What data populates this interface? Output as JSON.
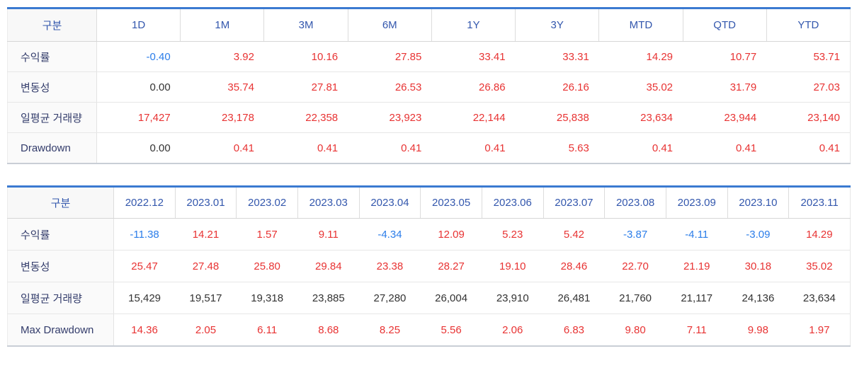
{
  "colors": {
    "top_border": "#3b7ad1",
    "bottom_border": "#c9ced6",
    "header_text": "#3357ad",
    "label_text": "#333c6b",
    "red": "#e83333",
    "blue": "#2b7de9",
    "neutral": "#333333"
  },
  "period_table": {
    "headers": [
      "구분",
      "1D",
      "1M",
      "3M",
      "6M",
      "1Y",
      "3Y",
      "MTD",
      "QTD",
      "YTD"
    ],
    "rows": [
      {
        "label": "수익률",
        "values": [
          "-0.40",
          "3.92",
          "10.16",
          "27.85",
          "33.41",
          "33.31",
          "14.29",
          "10.77",
          "53.71"
        ],
        "colors": [
          "blue",
          "red",
          "red",
          "red",
          "red",
          "red",
          "red",
          "red",
          "red"
        ]
      },
      {
        "label": "변동성",
        "values": [
          "0.00",
          "35.74",
          "27.81",
          "26.53",
          "26.86",
          "26.16",
          "35.02",
          "31.79",
          "27.03"
        ],
        "colors": [
          "neutral",
          "red",
          "red",
          "red",
          "red",
          "red",
          "red",
          "red",
          "red"
        ]
      },
      {
        "label": "일평균 거래량",
        "values": [
          "17,427",
          "23,178",
          "22,358",
          "23,923",
          "22,144",
          "25,838",
          "23,634",
          "23,944",
          "23,140"
        ],
        "colors": [
          "red",
          "red",
          "red",
          "red",
          "red",
          "red",
          "red",
          "red",
          "red"
        ]
      },
      {
        "label": "Drawdown",
        "values": [
          "0.00",
          "0.41",
          "0.41",
          "0.41",
          "0.41",
          "5.63",
          "0.41",
          "0.41",
          "0.41"
        ],
        "colors": [
          "neutral",
          "red",
          "red",
          "red",
          "red",
          "red",
          "red",
          "red",
          "red"
        ]
      }
    ]
  },
  "monthly_table": {
    "headers": [
      "구분",
      "2022.12",
      "2023.01",
      "2023.02",
      "2023.03",
      "2023.04",
      "2023.05",
      "2023.06",
      "2023.07",
      "2023.08",
      "2023.09",
      "2023.10",
      "2023.11"
    ],
    "rows": [
      {
        "label": "수익률",
        "values": [
          "-11.38",
          "14.21",
          "1.57",
          "9.11",
          "-4.34",
          "12.09",
          "5.23",
          "5.42",
          "-3.87",
          "-4.11",
          "-3.09",
          "14.29"
        ],
        "colors": [
          "blue",
          "red",
          "red",
          "red",
          "blue",
          "red",
          "red",
          "red",
          "blue",
          "blue",
          "blue",
          "red"
        ]
      },
      {
        "label": "변동성",
        "values": [
          "25.47",
          "27.48",
          "25.80",
          "29.84",
          "23.38",
          "28.27",
          "19.10",
          "28.46",
          "22.70",
          "21.19",
          "30.18",
          "35.02"
        ],
        "colors": [
          "red",
          "red",
          "red",
          "red",
          "red",
          "red",
          "red",
          "red",
          "red",
          "red",
          "red",
          "red"
        ]
      },
      {
        "label": "일평균 거래량",
        "values": [
          "15,429",
          "19,517",
          "19,318",
          "23,885",
          "27,280",
          "26,004",
          "23,910",
          "26,481",
          "21,760",
          "21,117",
          "24,136",
          "23,634"
        ],
        "colors": [
          "neutral",
          "neutral",
          "neutral",
          "neutral",
          "neutral",
          "neutral",
          "neutral",
          "neutral",
          "neutral",
          "neutral",
          "neutral",
          "neutral"
        ]
      },
      {
        "label": "Max Drawdown",
        "values": [
          "14.36",
          "2.05",
          "6.11",
          "8.68",
          "8.25",
          "5.56",
          "2.06",
          "6.83",
          "9.80",
          "7.11",
          "9.98",
          "1.97"
        ],
        "colors": [
          "red",
          "red",
          "red",
          "red",
          "red",
          "red",
          "red",
          "red",
          "red",
          "red",
          "red",
          "red"
        ]
      }
    ]
  }
}
